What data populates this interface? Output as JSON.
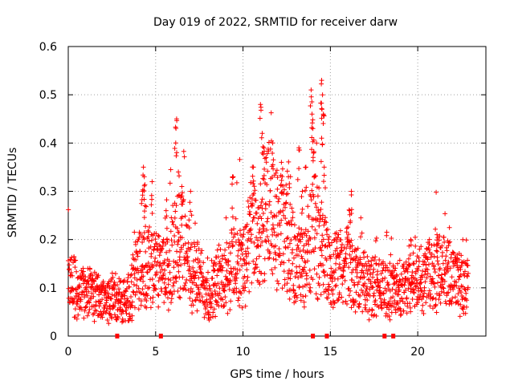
{
  "chart_data": {
    "type": "scatter",
    "title": "Day 019 of 2022, SRMTID for receiver darw",
    "xlabel": "GPS time / hours",
    "ylabel": "SRMTID / TECUs",
    "xlim": [
      0,
      23.9
    ],
    "ylim": [
      0,
      0.6
    ],
    "xticks": [
      0,
      5,
      10,
      15,
      20
    ],
    "xtick_labels": [
      "0",
      "5",
      "10",
      "15",
      "20"
    ],
    "yticks": [
      0,
      0.1,
      0.2,
      0.3,
      0.4,
      0.5,
      0.6
    ],
    "ytick_labels": [
      "0",
      "0.1",
      "0.2",
      "0.3",
      "0.4",
      "0.5",
      "0.6"
    ],
    "grid": true,
    "marker": "plus",
    "color": "#ff0000",
    "base_profile": {
      "x": [
        0,
        0.5,
        1,
        1.5,
        2,
        2.5,
        3,
        3.5,
        4,
        4.5,
        5,
        5.5,
        6,
        6.5,
        7,
        7.5,
        8,
        8.5,
        9,
        9.5,
        10,
        10.5,
        11,
        11.5,
        12,
        12.5,
        13,
        13.5,
        14,
        14.5,
        15,
        15.5,
        16,
        16.5,
        17,
        17.5,
        18,
        18.5,
        19,
        19.5,
        20,
        20.5,
        21,
        21.5,
        22,
        22.5,
        22.9
      ],
      "y": [
        0.12,
        0.1,
        0.08,
        0.09,
        0.07,
        0.08,
        0.07,
        0.08,
        0.14,
        0.15,
        0.14,
        0.12,
        0.17,
        0.2,
        0.14,
        0.12,
        0.09,
        0.11,
        0.12,
        0.16,
        0.14,
        0.22,
        0.2,
        0.26,
        0.22,
        0.2,
        0.15,
        0.14,
        0.22,
        0.18,
        0.13,
        0.14,
        0.14,
        0.12,
        0.11,
        0.1,
        0.1,
        0.09,
        0.1,
        0.11,
        0.12,
        0.13,
        0.14,
        0.13,
        0.12,
        0.11,
        0.1
      ]
    },
    "spikes": [
      {
        "x": 4.3,
        "y": 0.35
      },
      {
        "x": 4.35,
        "y": 0.33
      },
      {
        "x": 4.25,
        "y": 0.3
      },
      {
        "x": 4.4,
        "y": 0.27
      },
      {
        "x": 4.8,
        "y": 0.32
      },
      {
        "x": 5.6,
        "y": 0.26
      },
      {
        "x": 6.2,
        "y": 0.45
      },
      {
        "x": 6.15,
        "y": 0.4
      },
      {
        "x": 6.3,
        "y": 0.34
      },
      {
        "x": 6.5,
        "y": 0.31
      },
      {
        "x": 7.0,
        "y": 0.3
      },
      {
        "x": 9.4,
        "y": 0.33
      },
      {
        "x": 10.6,
        "y": 0.35
      },
      {
        "x": 11.0,
        "y": 0.48
      },
      {
        "x": 11.1,
        "y": 0.42
      },
      {
        "x": 11.2,
        "y": 0.39
      },
      {
        "x": 11.7,
        "y": 0.4
      },
      {
        "x": 12.2,
        "y": 0.36
      },
      {
        "x": 13.2,
        "y": 0.39
      },
      {
        "x": 13.6,
        "y": 0.35
      },
      {
        "x": 13.9,
        "y": 0.51
      },
      {
        "x": 13.95,
        "y": 0.46
      },
      {
        "x": 14.0,
        "y": 0.43
      },
      {
        "x": 14.05,
        "y": 0.38
      },
      {
        "x": 14.5,
        "y": 0.53
      },
      {
        "x": 14.55,
        "y": 0.5
      },
      {
        "x": 14.6,
        "y": 0.46
      },
      {
        "x": 14.5,
        "y": 0.41
      },
      {
        "x": 14.65,
        "y": 0.35
      },
      {
        "x": 16.2,
        "y": 0.3
      },
      {
        "x": 16.1,
        "y": 0.26
      },
      {
        "x": 19.6,
        "y": 0.2
      },
      {
        "x": 21.1,
        "y": 0.21
      },
      {
        "x": 12.6,
        "y": 0.33
      },
      {
        "x": 13.4,
        "y": 0.3
      }
    ],
    "baseline_markers": [
      2.8,
      5.3,
      14.0,
      14.8,
      18.1,
      18.6
    ]
  }
}
